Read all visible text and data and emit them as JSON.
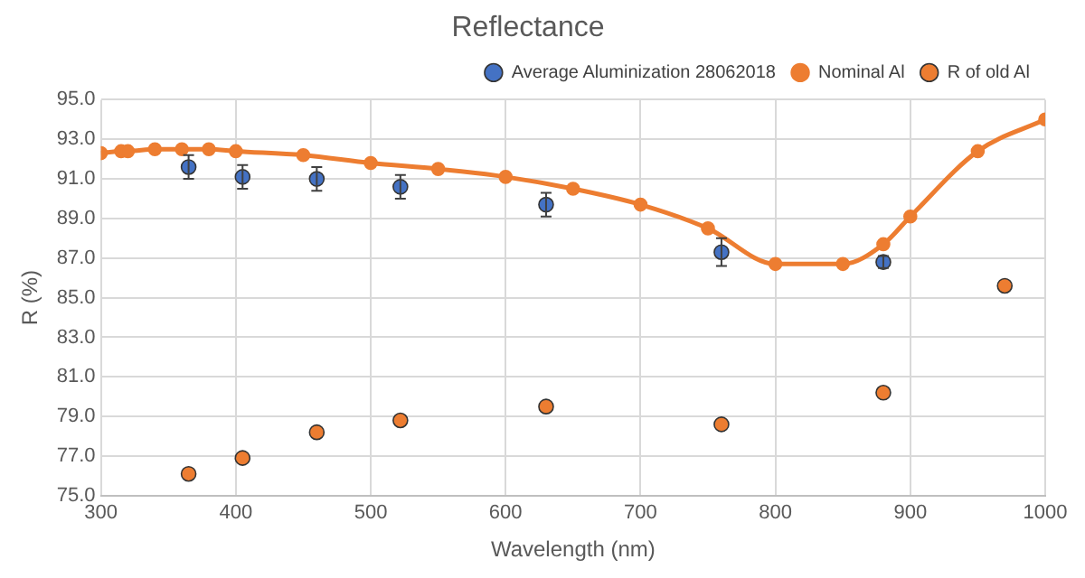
{
  "chart_data": {
    "type": "scatter",
    "title": "Reflectance",
    "xlabel": "Wavelength (nm)",
    "ylabel": "R (%)",
    "xlim": [
      300,
      1000
    ],
    "xticks": [
      300,
      400,
      500,
      600,
      700,
      800,
      900,
      1000
    ],
    "ylim": [
      75,
      95
    ],
    "yticks": [
      {
        "value": 75,
        "label": "75.0"
      },
      {
        "value": 77,
        "label": "77.0"
      },
      {
        "value": 79,
        "label": "79.0"
      },
      {
        "value": 81,
        "label": "81.0"
      },
      {
        "value": 83,
        "label": "83.0"
      },
      {
        "value": 85,
        "label": "85.0"
      },
      {
        "value": 87,
        "label": "87.0"
      },
      {
        "value": 89,
        "label": "89.0"
      },
      {
        "value": 91,
        "label": "91.0"
      },
      {
        "value": 93,
        "label": "93.0"
      },
      {
        "value": 95,
        "label": "95.0"
      }
    ],
    "grid": true,
    "legend": "top right",
    "marker": "circle",
    "series": [
      {
        "name": "Average Aluminization 28062018",
        "color": "#4472c4",
        "x": [
          365,
          405,
          460,
          522,
          630,
          760,
          880
        ],
        "values": [
          91.6,
          91.1,
          91.0,
          90.6,
          89.7,
          87.3,
          86.8
        ],
        "errors": [
          0.6,
          0.6,
          0.6,
          0.6,
          0.6,
          0.7,
          0.3
        ]
      },
      {
        "name": "Nominal Al",
        "type": "line",
        "color": "#ed7d31",
        "x": [
          300,
          315,
          320,
          340,
          360,
          380,
          400,
          450,
          500,
          550,
          600,
          650,
          700,
          750,
          800,
          850,
          880,
          900,
          950,
          1000
        ],
        "values": [
          92.3,
          92.4,
          92.4,
          92.5,
          92.5,
          92.5,
          92.4,
          92.2,
          91.8,
          91.5,
          91.1,
          90.5,
          89.7,
          88.5,
          86.7,
          86.7,
          87.7,
          89.1,
          92.4,
          94.0
        ]
      },
      {
        "name": "R of old Al",
        "color": "#ed7d31",
        "x": [
          365,
          405,
          460,
          522,
          630,
          760,
          880,
          970
        ],
        "values": [
          76.1,
          76.9,
          78.2,
          78.8,
          79.5,
          78.6,
          80.2,
          85.6
        ]
      }
    ]
  }
}
